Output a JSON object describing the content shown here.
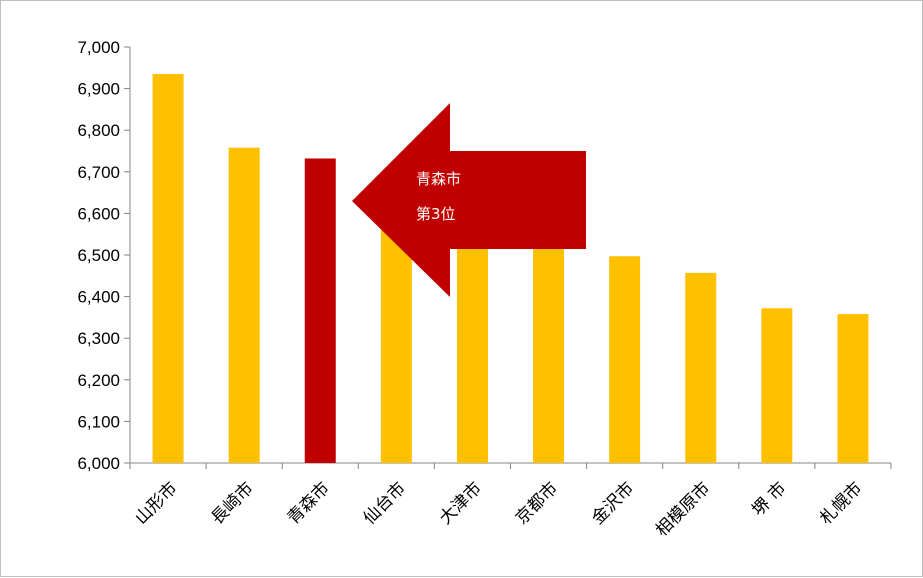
{
  "chart_data": {
    "type": "bar",
    "title": "",
    "xlabel": "",
    "ylabel": "",
    "ylim": [
      6000,
      7000
    ],
    "yticks": [
      6000,
      6100,
      6200,
      6300,
      6400,
      6500,
      6600,
      6700,
      6800,
      6900,
      7000
    ],
    "ytick_labels": [
      "6,000",
      "6,100",
      "6,200",
      "6,300",
      "6,400",
      "6,500",
      "6,600",
      "6,700",
      "6,800",
      "6,900",
      "7,000"
    ],
    "categories": [
      "山形市",
      "長崎市",
      "青森市",
      "仙台市",
      "大津市",
      "京都市",
      "金沢市",
      "相模原市",
      "堺 市",
      "札幌市"
    ],
    "values": [
      6935,
      6758,
      6732,
      6575,
      6550,
      6535,
      6497,
      6457,
      6372,
      6358
    ],
    "highlight_index": 2,
    "colors": {
      "bar": "#FFC000",
      "highlight": "#C00000",
      "arrow": "#C00000"
    },
    "grid": false,
    "annotation": {
      "line1": "青森市",
      "line2": "第3位"
    }
  }
}
